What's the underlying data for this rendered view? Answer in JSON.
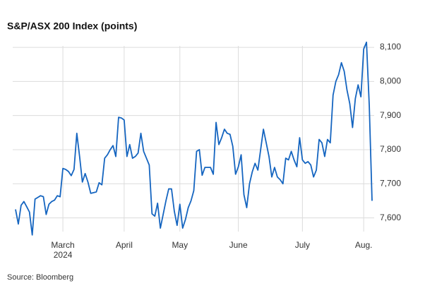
{
  "chart_data": {
    "type": "line",
    "title": "S&P/ASX 200 Index (points)",
    "source": "Source: Bloomberg",
    "x_year_label": "2024",
    "categories": [
      null,
      null,
      null,
      null,
      null,
      null,
      null,
      null,
      null,
      null,
      null,
      null,
      null,
      null,
      null,
      null,
      null,
      "March",
      null,
      null,
      null,
      null,
      null,
      null,
      null,
      null,
      null,
      null,
      null,
      null,
      null,
      null,
      null,
      null,
      null,
      null,
      null,
      null,
      null,
      "April",
      null,
      null,
      null,
      null,
      null,
      null,
      null,
      null,
      null,
      null,
      null,
      null,
      null,
      null,
      null,
      null,
      null,
      null,
      null,
      "May",
      null,
      null,
      null,
      null,
      null,
      null,
      null,
      null,
      null,
      null,
      null,
      null,
      null,
      null,
      null,
      null,
      null,
      null,
      null,
      null,
      "June",
      null,
      null,
      null,
      null,
      null,
      null,
      null,
      null,
      null,
      null,
      null,
      null,
      null,
      null,
      null,
      null,
      null,
      null,
      null,
      null,
      null,
      null,
      "July",
      null,
      null,
      null,
      null,
      null,
      null,
      null,
      null,
      null,
      null,
      null,
      null,
      null,
      null,
      null,
      null,
      null,
      null,
      null,
      null,
      null,
      "Aug.",
      null,
      null,
      null
    ],
    "series": [
      {
        "name": "S&P/ASX 200",
        "color": "#1565c0",
        "values": [
          7625,
          7582,
          7637,
          7648,
          7633,
          7617,
          7550,
          7655,
          7660,
          7665,
          7662,
          7610,
          7640,
          7648,
          7652,
          7665,
          7662,
          7745,
          7742,
          7736,
          7724,
          7742,
          7848,
          7780,
          7705,
          7730,
          7705,
          7672,
          7674,
          7676,
          7703,
          7697,
          7775,
          7785,
          7800,
          7812,
          7780,
          7895,
          7893,
          7887,
          7780,
          7815,
          7775,
          7780,
          7790,
          7848,
          7795,
          7775,
          7755,
          7612,
          7605,
          7643,
          7570,
          7610,
          7650,
          7685,
          7685,
          7620,
          7578,
          7640,
          7570,
          7595,
          7630,
          7650,
          7680,
          7795,
          7800,
          7725,
          7748,
          7748,
          7748,
          7728,
          7880,
          7815,
          7835,
          7860,
          7848,
          7845,
          7810,
          7728,
          7750,
          7785,
          7668,
          7630,
          7700,
          7735,
          7760,
          7740,
          7800,
          7860,
          7820,
          7780,
          7720,
          7748,
          7720,
          7712,
          7700,
          7775,
          7770,
          7795,
          7770,
          7750,
          7835,
          7770,
          7760,
          7765,
          7755,
          7720,
          7740,
          7830,
          7820,
          7780,
          7830,
          7820,
          7960,
          8000,
          8020,
          8055,
          8030,
          7975,
          7935,
          7865,
          7950,
          7990,
          7955,
          8095,
          8115,
          7930,
          7650
        ]
      }
    ],
    "ylim": [
      7535,
      8125
    ],
    "yticks": [
      {
        "value": 7600,
        "label": "7,600"
      },
      {
        "value": 7700,
        "label": "7,700"
      },
      {
        "value": 7800,
        "label": "7,800"
      },
      {
        "value": 7900,
        "label": "7,900"
      },
      {
        "value": 8000,
        "label": "8,000"
      },
      {
        "value": 8100,
        "label": "8,100"
      }
    ],
    "grid": true
  }
}
